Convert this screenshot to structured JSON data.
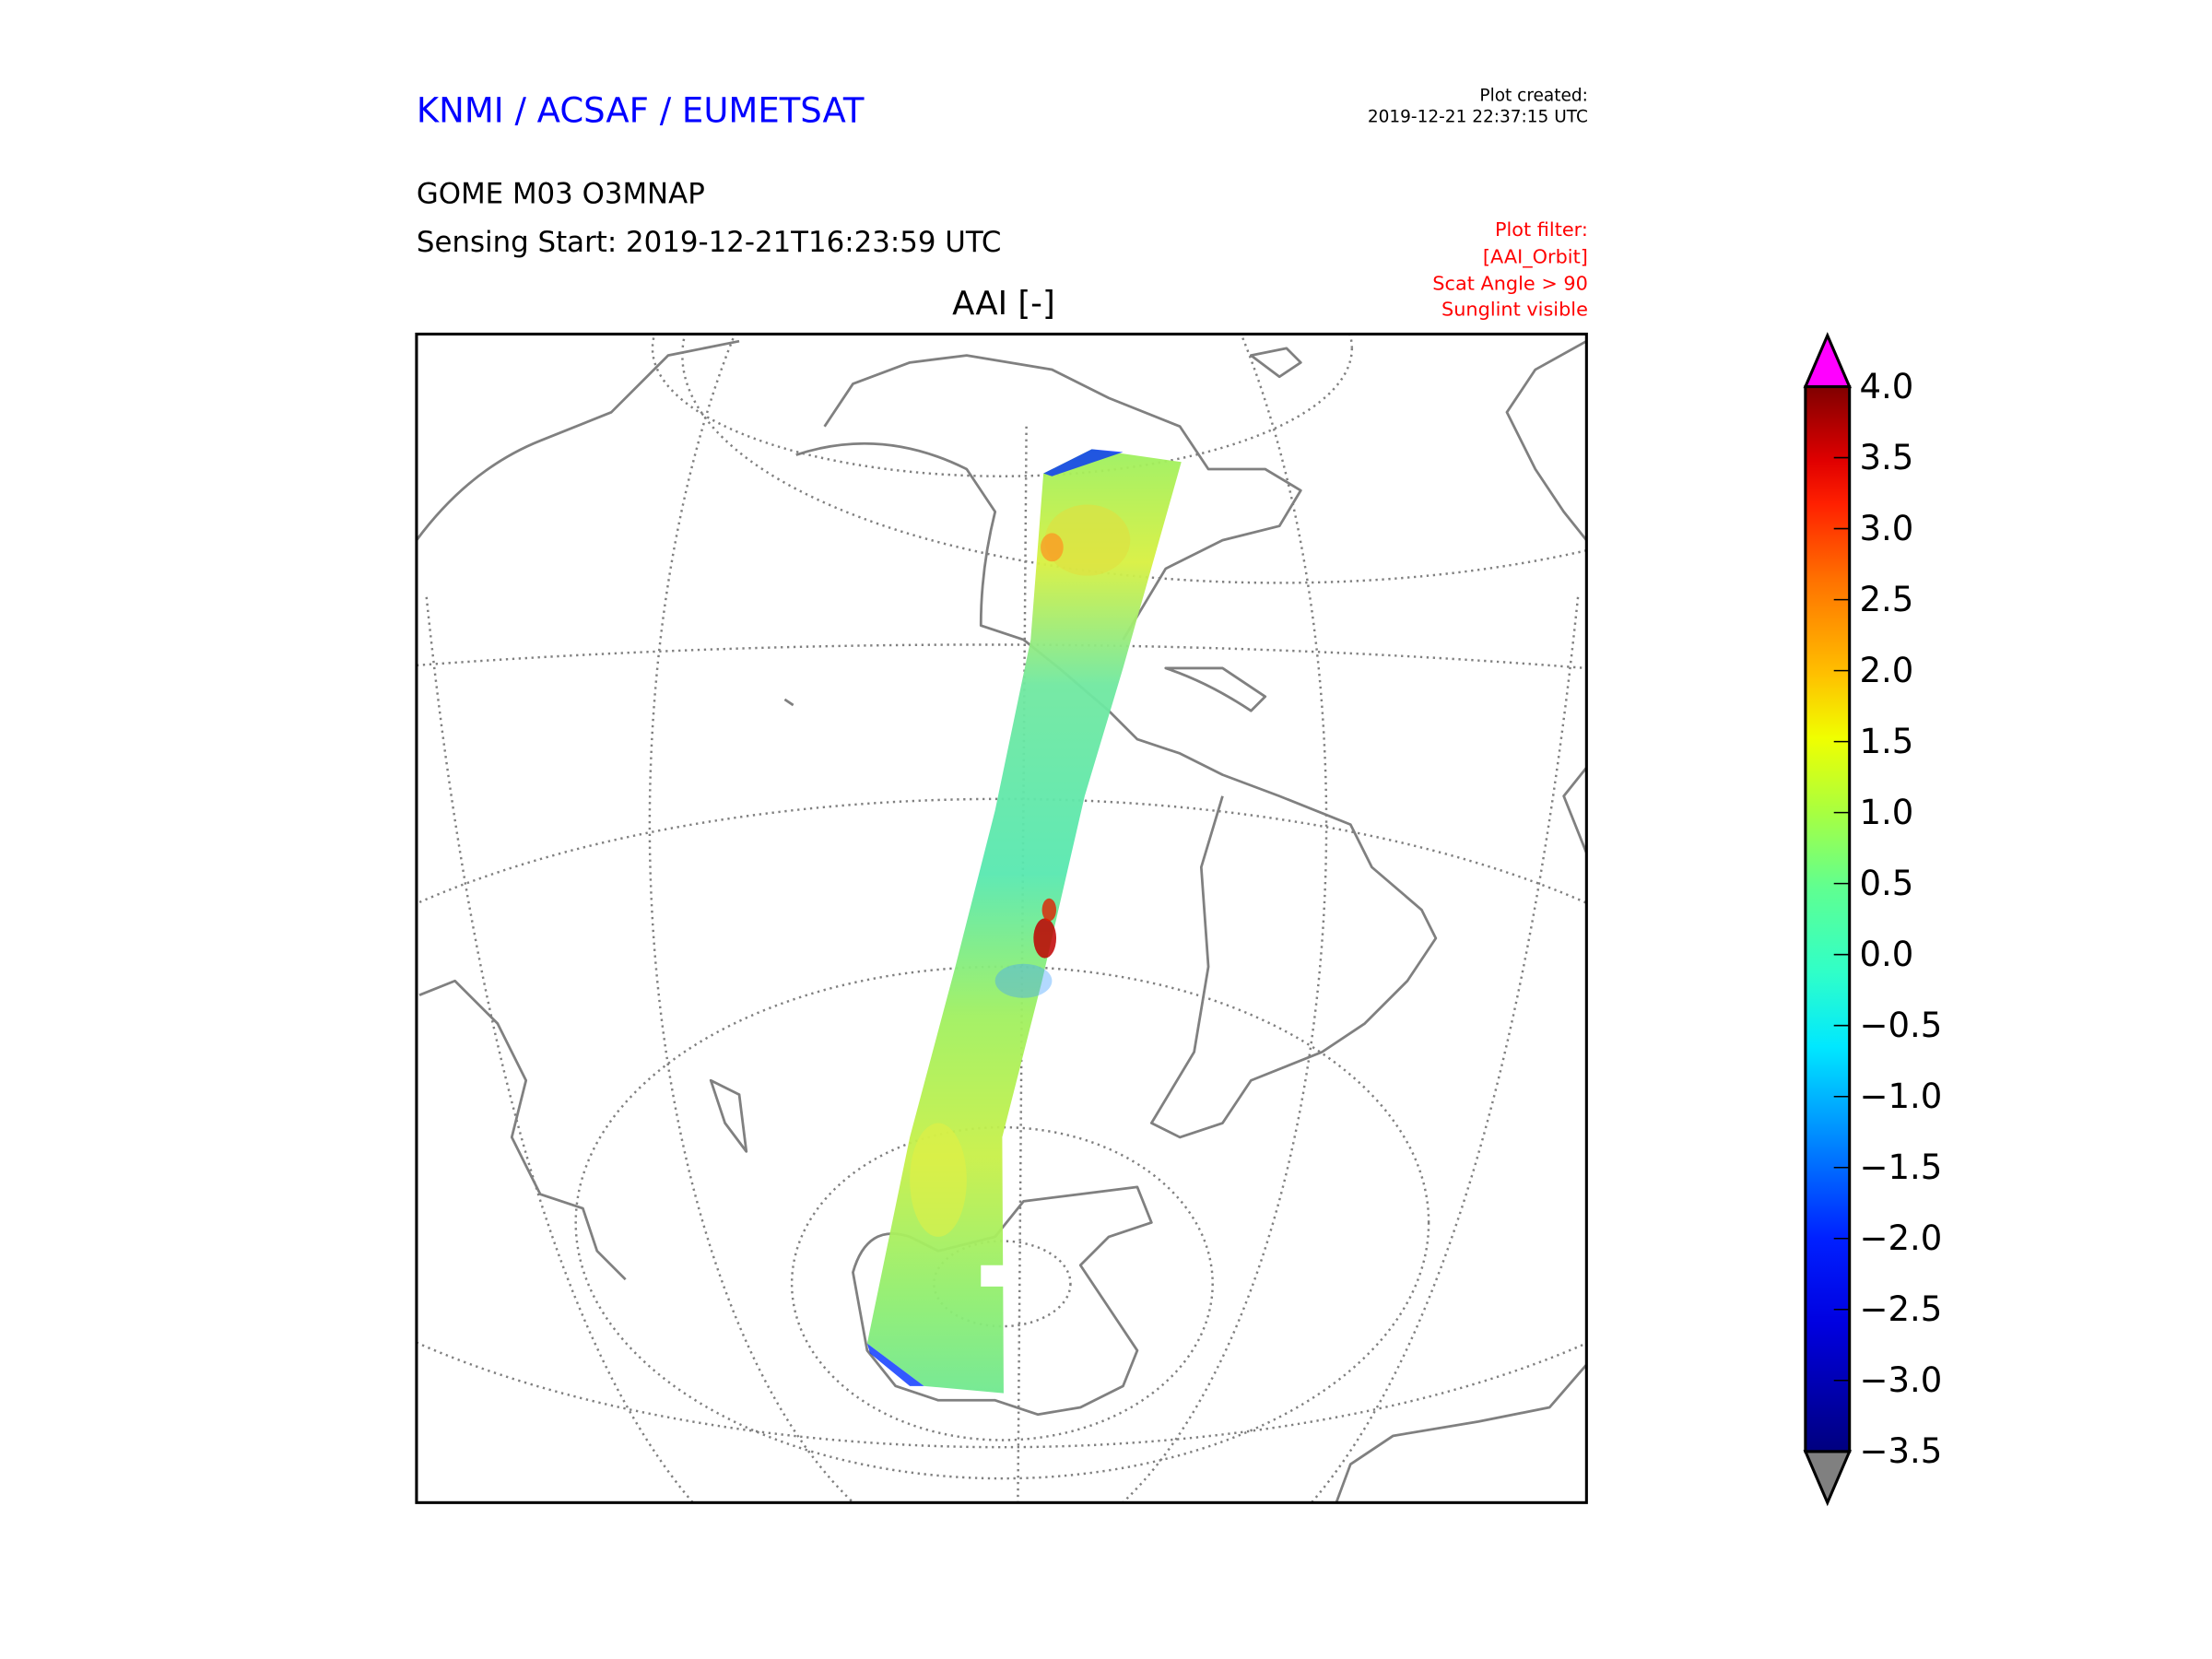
{
  "header": {
    "org": "KNMI / ACSAF / EUMETSAT",
    "product": "GOME M03 O3MNAP",
    "sensing_start": "Sensing Start: 2019-12-21T16:23:59 UTC",
    "plot_created_label": "Plot created:",
    "plot_created_time": "2019-12-21 22:37:15 UTC",
    "filter_lines": [
      "Plot filter:",
      "[AAI_Orbit]",
      "Scat Angle > 90",
      "Sunglint visible"
    ]
  },
  "map": {
    "title": "AAI [-]",
    "projection": "orthographic"
  },
  "colorbar": {
    "ticks": [
      "4.0",
      "3.5",
      "3.0",
      "2.5",
      "2.0",
      "1.5",
      "1.0",
      "0.5",
      "0.0",
      "−0.5",
      "−1.0",
      "−1.5",
      "−2.0",
      "−2.5",
      "−3.0",
      "−3.5"
    ],
    "min": -3.5,
    "max": 4.0,
    "over_color": "#ff00ff",
    "under_color": "#808080"
  },
  "colors": {
    "org": "#0000ff",
    "filter": "#ff0000",
    "coast": "#808080"
  }
}
